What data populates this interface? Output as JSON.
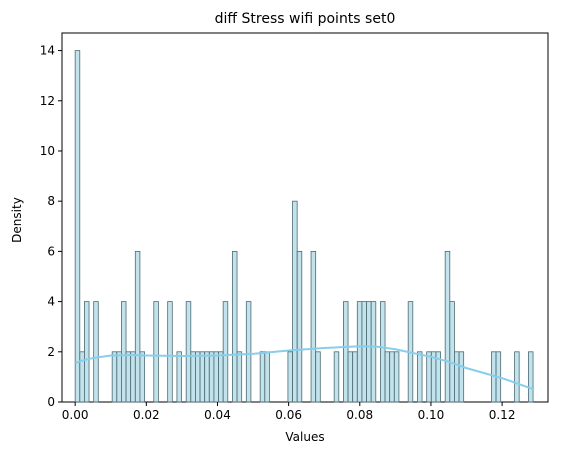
{
  "chart_data": {
    "type": "bar",
    "title": "diff Stress wifi points set0",
    "xlabel": "Values",
    "ylabel": "Density",
    "xlim": [
      -0.0037,
      0.1329
    ],
    "ylim": [
      0,
      14.7
    ],
    "x_ticks": [
      0.0,
      0.02,
      0.04,
      0.06,
      0.08,
      0.1,
      0.12
    ],
    "x_tick_labels": [
      "0.00",
      "0.02",
      "0.04",
      "0.06",
      "0.08",
      "0.10",
      "0.12"
    ],
    "y_ticks": [
      0,
      2,
      4,
      6,
      8,
      10,
      12,
      14
    ],
    "y_tick_labels": [
      "0",
      "2",
      "4",
      "6",
      "8",
      "10",
      "12",
      "14"
    ],
    "bin_width": 0.0013,
    "bin_start": 0.0,
    "bars": [
      {
        "bin": 0,
        "value": 14
      },
      {
        "bin": 1,
        "value": 2
      },
      {
        "bin": 2,
        "value": 4
      },
      {
        "bin": 4,
        "value": 4
      },
      {
        "bin": 8,
        "value": 2
      },
      {
        "bin": 9,
        "value": 2
      },
      {
        "bin": 10,
        "value": 4
      },
      {
        "bin": 11,
        "value": 2
      },
      {
        "bin": 12,
        "value": 2
      },
      {
        "bin": 13,
        "value": 6
      },
      {
        "bin": 14,
        "value": 2
      },
      {
        "bin": 17,
        "value": 4
      },
      {
        "bin": 20,
        "value": 4
      },
      {
        "bin": 22,
        "value": 2
      },
      {
        "bin": 24,
        "value": 4
      },
      {
        "bin": 25,
        "value": 2
      },
      {
        "bin": 26,
        "value": 2
      },
      {
        "bin": 27,
        "value": 2
      },
      {
        "bin": 28,
        "value": 2
      },
      {
        "bin": 29,
        "value": 2
      },
      {
        "bin": 30,
        "value": 2
      },
      {
        "bin": 31,
        "value": 2
      },
      {
        "bin": 32,
        "value": 4
      },
      {
        "bin": 34,
        "value": 6
      },
      {
        "bin": 35,
        "value": 2
      },
      {
        "bin": 37,
        "value": 4
      },
      {
        "bin": 40,
        "value": 2
      },
      {
        "bin": 41,
        "value": 2
      },
      {
        "bin": 46,
        "value": 2
      },
      {
        "bin": 47,
        "value": 8
      },
      {
        "bin": 48,
        "value": 6
      },
      {
        "bin": 51,
        "value": 6
      },
      {
        "bin": 52,
        "value": 2
      },
      {
        "bin": 56,
        "value": 2
      },
      {
        "bin": 58,
        "value": 4
      },
      {
        "bin": 59,
        "value": 2
      },
      {
        "bin": 60,
        "value": 2
      },
      {
        "bin": 61,
        "value": 4
      },
      {
        "bin": 62,
        "value": 4
      },
      {
        "bin": 63,
        "value": 4
      },
      {
        "bin": 64,
        "value": 4
      },
      {
        "bin": 66,
        "value": 4
      },
      {
        "bin": 67,
        "value": 2
      },
      {
        "bin": 68,
        "value": 2
      },
      {
        "bin": 69,
        "value": 2
      },
      {
        "bin": 72,
        "value": 4
      },
      {
        "bin": 74,
        "value": 2
      },
      {
        "bin": 76,
        "value": 2
      },
      {
        "bin": 77,
        "value": 2
      },
      {
        "bin": 78,
        "value": 2
      },
      {
        "bin": 80,
        "value": 6
      },
      {
        "bin": 81,
        "value": 4
      },
      {
        "bin": 82,
        "value": 2
      },
      {
        "bin": 83,
        "value": 2
      },
      {
        "bin": 90,
        "value": 2
      },
      {
        "bin": 91,
        "value": 2
      },
      {
        "bin": 95,
        "value": 2
      },
      {
        "bin": 98,
        "value": 2
      }
    ],
    "kde": {
      "x": [
        0.0,
        0.002,
        0.005,
        0.01,
        0.015,
        0.02,
        0.03,
        0.04,
        0.05,
        0.06,
        0.07,
        0.08,
        0.085,
        0.09,
        0.095,
        0.1,
        0.105,
        0.11,
        0.115,
        0.12,
        0.125,
        0.129
      ],
      "y": [
        1.55,
        1.65,
        1.75,
        1.85,
        1.87,
        1.85,
        1.83,
        1.85,
        1.92,
        2.05,
        2.15,
        2.22,
        2.2,
        2.1,
        1.95,
        1.8,
        1.6,
        1.35,
        1.15,
        0.95,
        0.7,
        0.5
      ]
    },
    "colors": {
      "bar_fill": "#add8e6",
      "bar_edge": "#4d6b73",
      "kde_line": "#87ceeb"
    },
    "grid": false,
    "legend": "none"
  }
}
